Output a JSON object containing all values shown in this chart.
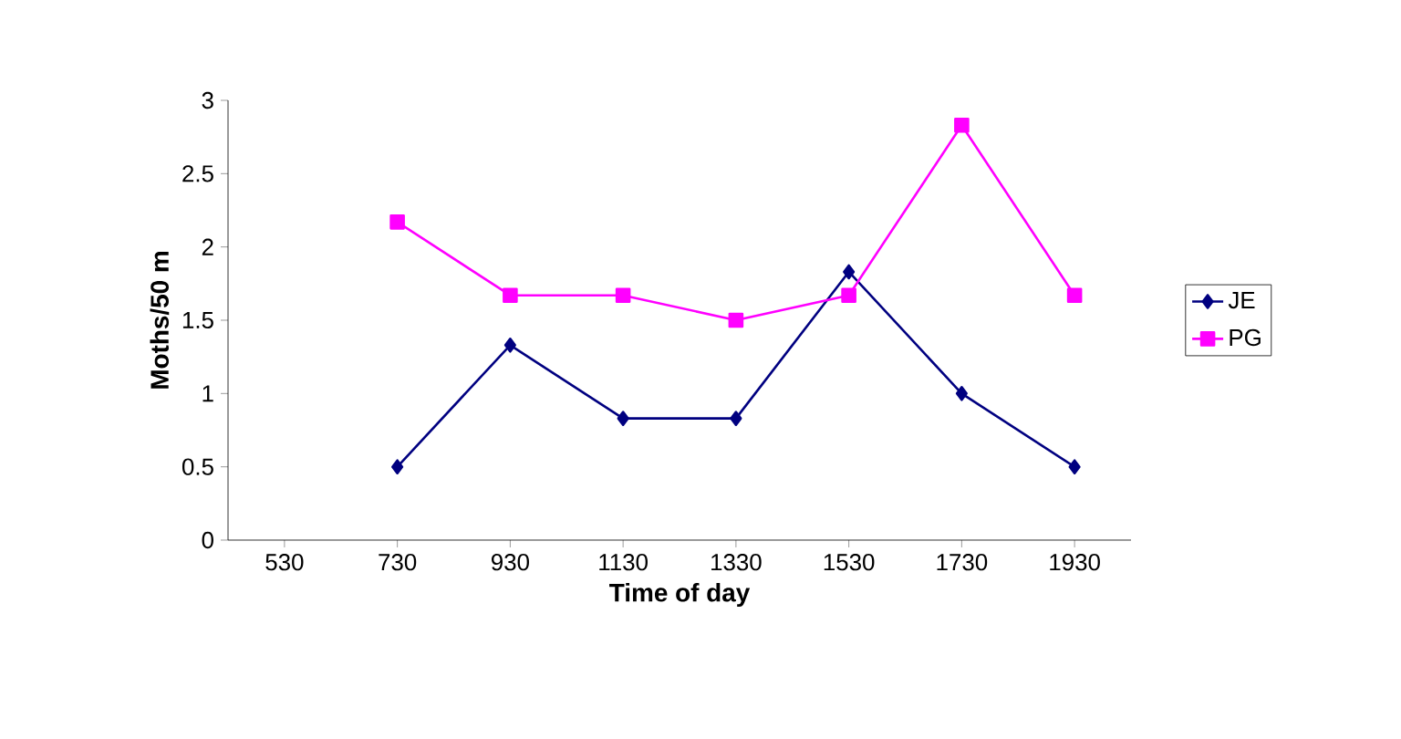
{
  "chart_data": {
    "type": "line",
    "xlabel": "Time of day",
    "ylabel": "Moths/50 m",
    "categories": [
      "530",
      "730",
      "930",
      "1130",
      "1330",
      "1530",
      "1730",
      "1930"
    ],
    "series": [
      {
        "name": "JE",
        "color": "#000080",
        "marker": "diamond",
        "values": [
          null,
          0.5,
          1.33,
          0.83,
          0.83,
          1.83,
          1.0,
          0.5
        ]
      },
      {
        "name": "PG",
        "color": "#ff00ff",
        "marker": "square",
        "values": [
          null,
          2.17,
          1.67,
          1.67,
          1.5,
          1.67,
          2.83,
          1.67
        ]
      }
    ],
    "ylim": [
      0,
      3
    ],
    "yticks": [
      0,
      0.5,
      1,
      1.5,
      2,
      2.5,
      3
    ],
    "legend": "right",
    "grid": false
  }
}
